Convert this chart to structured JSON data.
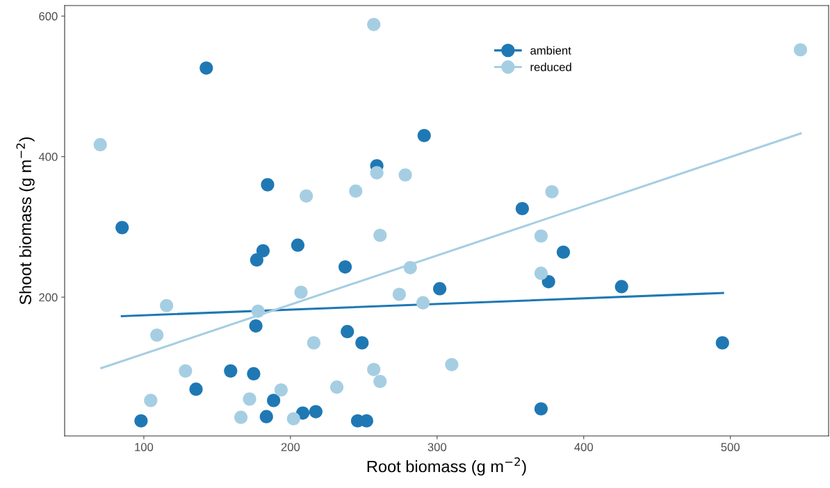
{
  "chart_data": {
    "type": "scatter",
    "xlabel": "Root biomass (g m$^{−2}$)",
    "ylabel": "Shoot biomass (g m$^{−2}$)",
    "xlim": [
      46,
      567
    ],
    "ylim": [
      2.5,
      615
    ],
    "xticks": [
      100,
      200,
      300,
      400,
      500
    ],
    "yticks": [
      200,
      400,
      600
    ],
    "grid": false,
    "legend": "top right",
    "marker": "circle",
    "series": [
      {
        "name": "ambient",
        "color": "#1f78b4",
        "x": [
          142.6,
          85.2,
          98.1,
          135.6,
          159.2,
          174.9,
          184.4,
          181.3,
          177,
          176.4,
          188.5,
          183.6,
          205,
          208.4,
          217.3,
          237.3,
          238.8,
          248.8,
          245.8,
          251.9,
          258.9,
          291.2,
          301.8,
          358.1,
          386.1,
          376,
          425.8,
          494.6,
          370.9
        ],
        "values": [
          526,
          299,
          24,
          69,
          95,
          91,
          360,
          266,
          253,
          159,
          53,
          30,
          274,
          35,
          37,
          243,
          151,
          135,
          24,
          24,
          387,
          430,
          212,
          326,
          264,
          222,
          215,
          135,
          41
        ]
      },
      {
        "name": "reduced",
        "color": "#a6cee3",
        "x": [
          70.3,
          115.5,
          108.9,
          128.4,
          104.7,
          166.2,
          172.1,
          193.6,
          202.1,
          177.9,
          207.2,
          215.9,
          210.8,
          244.5,
          258.9,
          278.3,
          261.1,
          281.7,
          274.2,
          290.4,
          231.6,
          256.8,
          261.1,
          256.8,
          547.8,
          378.3,
          370.9,
          370.9,
          310
        ],
        "values": [
          417,
          188,
          146,
          95,
          53,
          29,
          55,
          68,
          27,
          180,
          207,
          135,
          344,
          351,
          377,
          374,
          288,
          242,
          204,
          192,
          72,
          97,
          80,
          588,
          552,
          350,
          287,
          234,
          104
        ]
      },
      {
        "type": "line",
        "marker": "none",
        "color": "#1f78b4",
        "x": [
          85,
          495
        ],
        "values": [
          173,
          206
        ]
      },
      {
        "type": "line",
        "marker": "none",
        "color": "#a6cee3",
        "x": [
          71,
          548
        ],
        "values": [
          99,
          433
        ]
      }
    ]
  }
}
